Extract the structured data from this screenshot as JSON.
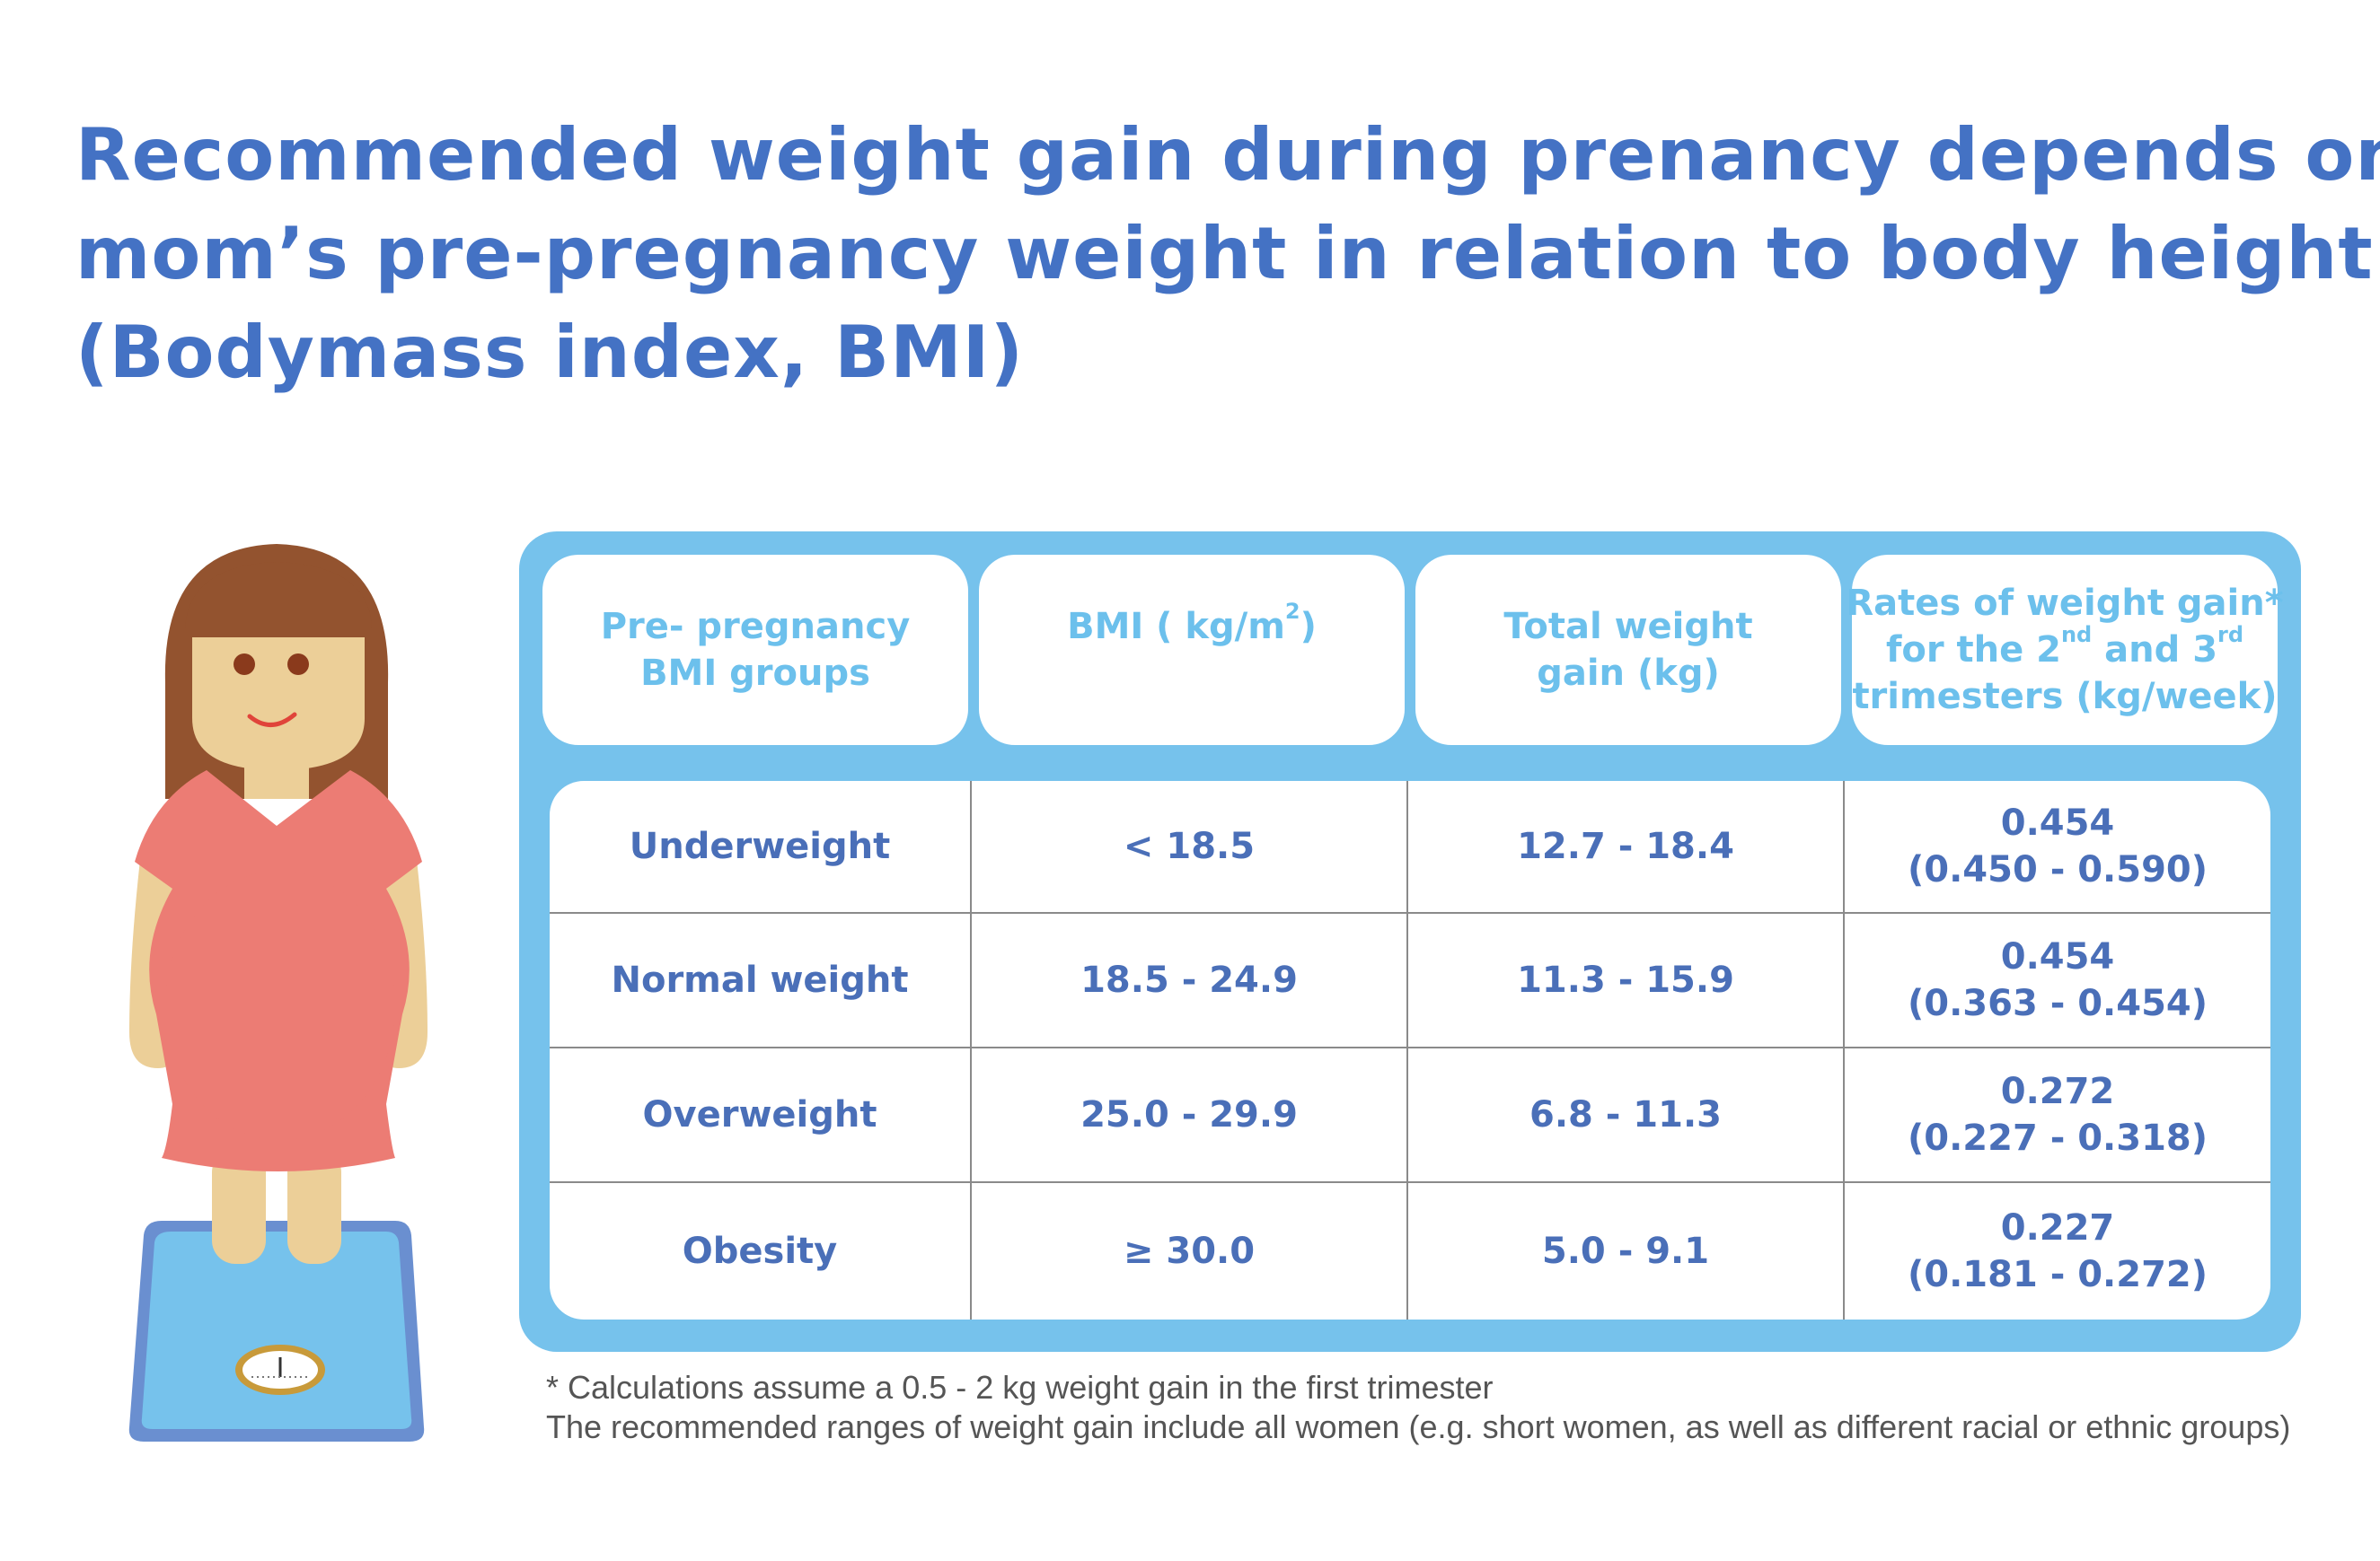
{
  "title_lines": [
    "Recommended weight gain during prenancy depends on",
    "mom’s pre-pregnancy weight in relation to body height",
    "(Bodymass index, BMI)"
  ],
  "colors": {
    "title": "#4472c4",
    "frame": "#76c2ec",
    "header_text": "#6cc0ec",
    "body_text": "#4a6fb8",
    "dress": "#ec7c74",
    "hair": "#93532f",
    "skin": "#eccf98",
    "scale": "#76c2ec"
  },
  "table": {
    "headers": {
      "group": [
        "Pre- pregnancy",
        "BMI groups"
      ],
      "bmi_main": "BMI ( kg/m",
      "bmi_sup": "2",
      "bmi_end": ")",
      "total": [
        "Total weight",
        "gain (kg)"
      ],
      "rates_line1": "Rates of weight gain*",
      "rates_line2_a": "for the 2",
      "rates_line2_sup1": "nd",
      "rates_line2_b": " and 3",
      "rates_line2_sup2": "rd",
      "rates_line3": "trimesters (kg/week)"
    },
    "rows": [
      {
        "group": "Underweight",
        "bmi": "< 18.5",
        "total": "12.7 - 18.4",
        "rate": "0.454",
        "rate_range": "(0.450 - 0.590)"
      },
      {
        "group": "Normal weight",
        "bmi": "18.5 - 24.9",
        "total": "11.3 - 15.9",
        "rate": "0.454",
        "rate_range": "(0.363 - 0.454)"
      },
      {
        "group": "Overweight",
        "bmi": "25.0 - 29.9",
        "total": "6.8 - 11.3",
        "rate": "0.272",
        "rate_range": "(0.227 - 0.318)"
      },
      {
        "group": "Obesity",
        "bmi": "≥ 30.0",
        "total": "5.0 - 9.1",
        "rate": "0.227",
        "rate_range": "(0.181 - 0.272)"
      }
    ]
  },
  "notes": [
    "* Calculations assume a 0.5 - 2 kg weight gain in the first trimester",
    "The recommended ranges of weight gain include all women (e.g. short women, as well as different racial or ethnic groups)"
  ],
  "illustration": {
    "figure": "pregnant-woman",
    "scale": "bathroom-scale"
  }
}
